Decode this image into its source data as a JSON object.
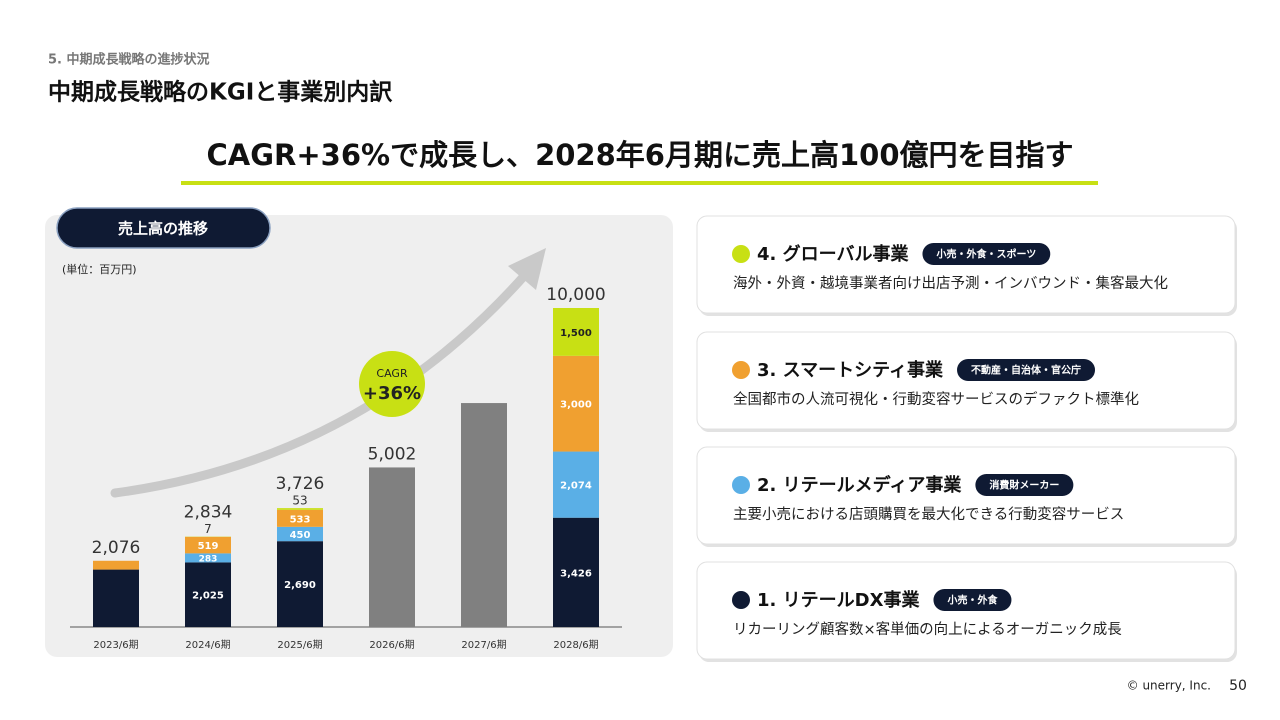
{
  "header": {
    "section": "5. 中期成長戦略の進捗状況",
    "title": "中期成長戦略のKGIと事業別内訳",
    "headline": "CAGR+36%で成長し、2028年6月期に売上高100億円を目指す"
  },
  "chart_data": {
    "type": "stacked_bar",
    "title": "売上高の推移",
    "subtitle": "(単位：百万円)",
    "categories": [
      "2023/6期",
      "2024/6期",
      "2025/6期",
      "2026/6期",
      "2027/6期",
      "2028/6期"
    ],
    "series": [
      {
        "name": "1. リテールDX事業",
        "color": "#0f1a33",
        "values": [
          1800,
          2025,
          2690,
          null,
          null,
          3426
        ],
        "value_labels": [
          null,
          "2,025",
          "2,690",
          null,
          null,
          "3,426"
        ]
      },
      {
        "name": "2. リテールメディア事業",
        "color": "#5aafe6",
        "values": [
          null,
          283,
          450,
          null,
          null,
          2074
        ],
        "value_labels": [
          null,
          "283",
          "450",
          null,
          null,
          "2,074"
        ]
      },
      {
        "name": "3. スマートシティ事業",
        "color": "#f0a030",
        "values": [
          276,
          519,
          533,
          null,
          null,
          3000
        ],
        "value_labels": [
          null,
          "519",
          "533",
          null,
          null,
          "3,000"
        ]
      },
      {
        "name": "4. グローバル事業",
        "color": "#c8e014",
        "values": [
          null,
          7,
          53,
          null,
          null,
          1500
        ],
        "value_labels": [
          null,
          "7",
          "53",
          null,
          null,
          "1,500"
        ]
      },
      {
        "color": "#808080",
        "values": [
          null,
          null,
          null,
          5002,
          7020,
          null
        ]
      }
    ],
    "totals": {
      "values": [
        2076,
        2834,
        3726,
        5002,
        7020,
        10000
      ],
      "value_labels": [
        "2,076",
        "2,834",
        "3,726",
        "5,002",
        null,
        "10,000"
      ]
    },
    "annotations": [
      "CAGR",
      "+36%"
    ],
    "ylim": [
      0,
      10000
    ]
  },
  "cards": [
    {
      "tag": "小売・外食・スポーツ",
      "description": "海外・外資・越境事業者向け出店予測・インバウンド・集客最大化"
    },
    {
      "tag": "不動産・自治体・官公庁",
      "description": "全国都市の人流可視化・行動変容サービスのデファクト標準化"
    },
    {
      "tag": "消費財メーカー",
      "description": "主要小売における店頭購買を最大化できる行動変容サービス"
    },
    {
      "tag": "小売・外食",
      "description": "リカーリング顧客数×客単価の向上によるオーガニック成長"
    }
  ],
  "footer": {
    "copyright": "© unerry, Inc.",
    "page": "50"
  }
}
